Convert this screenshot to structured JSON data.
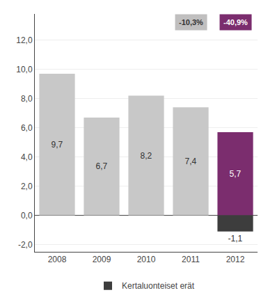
{
  "chart_data": {
    "type": "bar",
    "categories": [
      "2008",
      "2009",
      "2010",
      "2011",
      "2012"
    ],
    "series": [
      {
        "values": [
          9.7,
          6.7,
          8.2,
          7.4,
          5.7
        ],
        "colors": [
          "#c8c8c8",
          "#c8c8c8",
          "#c8c8c8",
          "#c8c8c8",
          "#7b2d6e"
        ],
        "value_labels": [
          "9,7",
          "6,7",
          "8,2",
          "7,4",
          "5,7"
        ]
      },
      {
        "name": "Kertaluonteiset erät",
        "color": "#3d3d3d",
        "values": [
          0,
          0,
          0,
          0,
          -1.1
        ],
        "value_labels": [
          null,
          null,
          null,
          null,
          "-1,1"
        ]
      }
    ],
    "data_labels": true,
    "annotations": [
      {
        "x": "2011",
        "text": "-10,3%",
        "color": "#c0bfbf"
      },
      {
        "x": "2012",
        "text": "-40,9%",
        "color": "#7b2d6e"
      }
    ],
    "ylim": [
      -2.5,
      13.8
    ],
    "yticks": [
      {
        "value": -2.0,
        "label": "-2,0"
      },
      {
        "value": 0.0,
        "label": "0,0"
      },
      {
        "value": 2.0,
        "label": "2,0"
      },
      {
        "value": 4.0,
        "label": "4,0"
      },
      {
        "value": 6.0,
        "label": "6,0"
      },
      {
        "value": 8.0,
        "label": "8,0"
      },
      {
        "value": 10.0,
        "label": "10,0"
      },
      {
        "value": 12.0,
        "label": "12,0"
      }
    ],
    "grid": true,
    "legend": "bottom"
  }
}
